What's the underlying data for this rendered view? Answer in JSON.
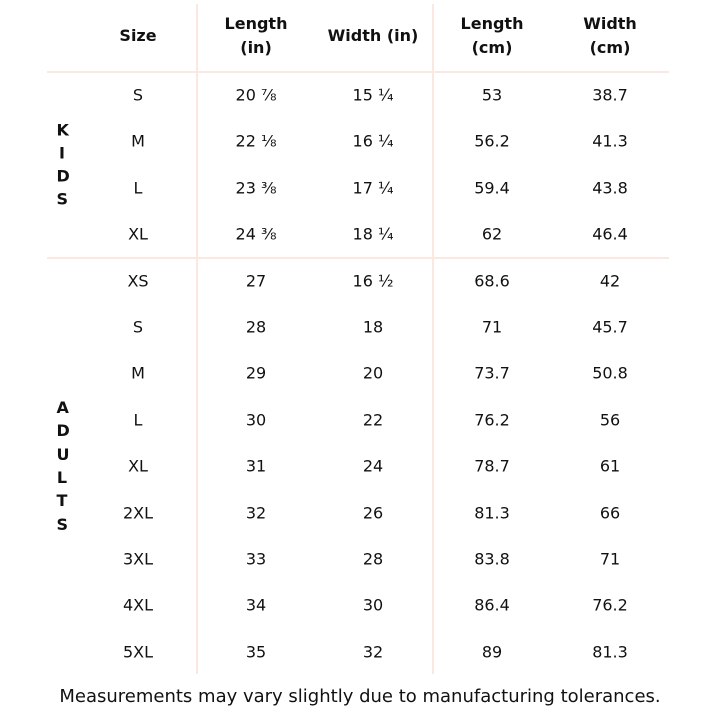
{
  "table": {
    "header": [
      "Size",
      "Length\n(in)",
      "Width (in)",
      "Length\n(cm)",
      "Width\n(cm)"
    ],
    "groups": [
      {
        "label": "KIDS",
        "rows": [
          [
            "S",
            "20 ⅞",
            "15 ¼",
            53,
            38.7
          ],
          [
            "M",
            "22 ⅛",
            "16 ¼",
            56.2,
            41.3
          ],
          [
            "L",
            "23 ⅜",
            "17 ¼",
            59.4,
            43.8
          ],
          [
            "XL",
            "24 ⅜",
            "18 ¼",
            62,
            46.4
          ]
        ]
      },
      {
        "label": "ADULTS",
        "rows": [
          [
            "XS",
            27,
            "16 ½",
            68.6,
            42
          ],
          [
            "S",
            28,
            18,
            71,
            45.7
          ],
          [
            "M",
            29,
            20,
            73.7,
            50.8
          ],
          [
            "L",
            30,
            22,
            76.2,
            56
          ],
          [
            "XL",
            31,
            24,
            78.7,
            61
          ],
          [
            "2XL",
            32,
            26,
            81.3,
            66
          ],
          [
            "3XL",
            33,
            28,
            83.8,
            71
          ],
          [
            "4XL",
            34,
            30,
            86.4,
            76.2
          ],
          [
            "5XL",
            35,
            32,
            89,
            81.3
          ]
        ]
      }
    ]
  },
  "footer": "Measurements may vary slightly due to manufacturing tolerances."
}
